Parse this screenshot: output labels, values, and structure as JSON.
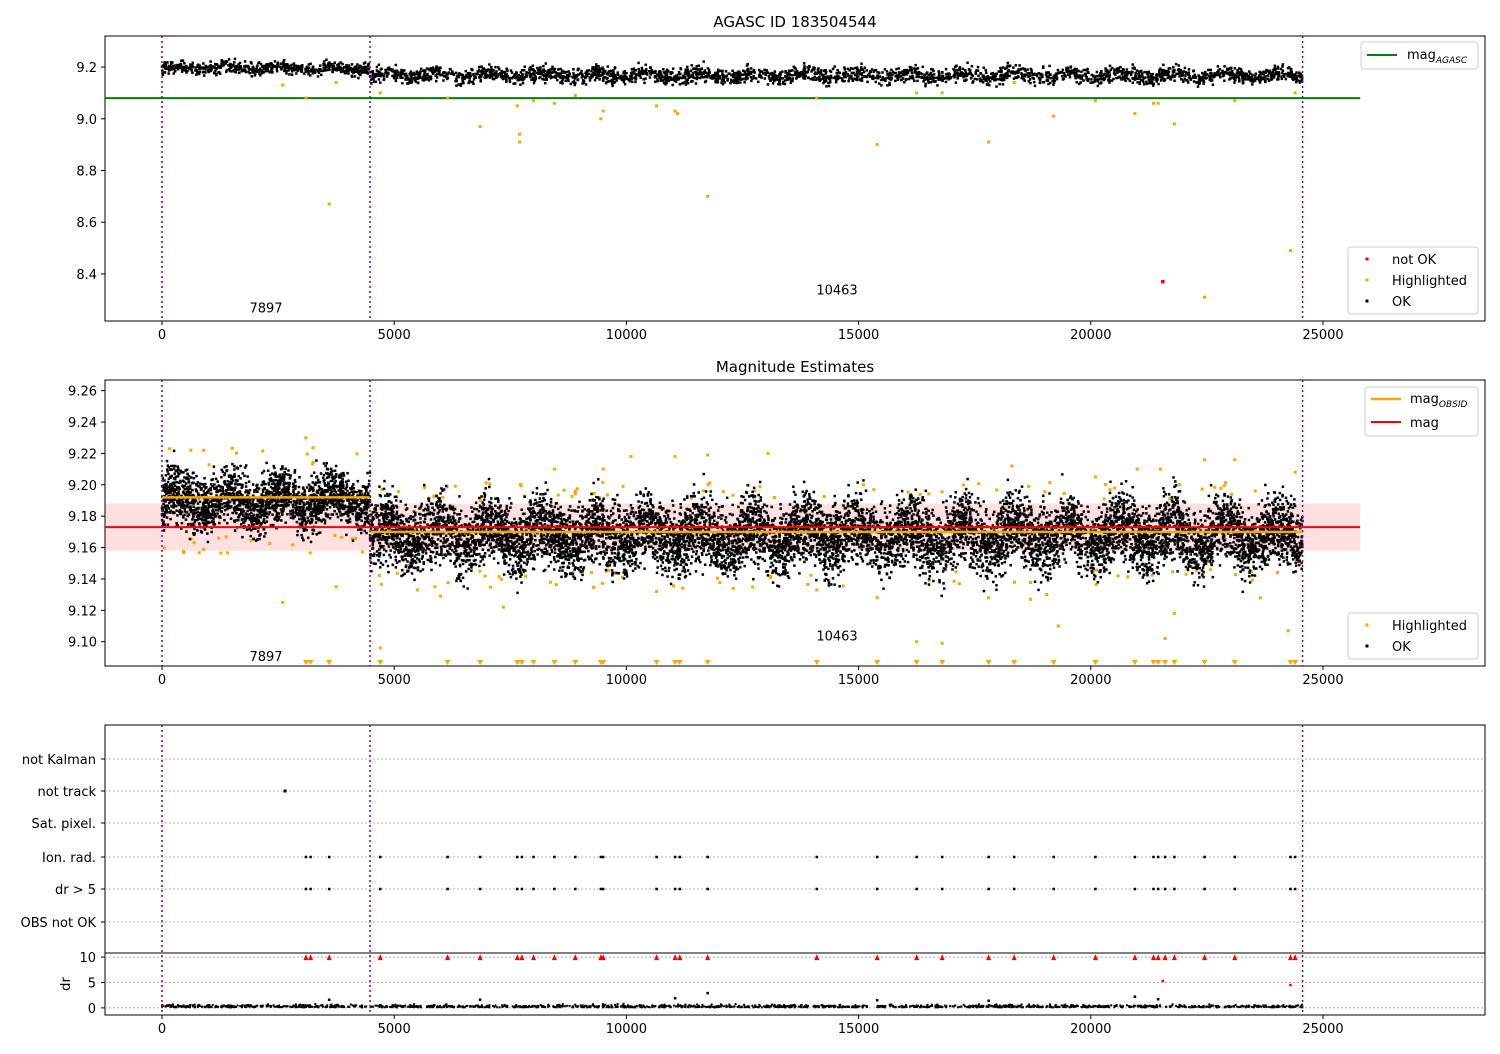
{
  "chart_data": [
    {
      "type": "scatter",
      "title": "AGASC ID 183504544",
      "xlabel": "",
      "ylabel": "",
      "xlim": [
        -1227,
        28488
      ],
      "ylim": [
        8.218,
        9.32
      ],
      "xticks": [
        0,
        5000,
        10000,
        15000,
        20000,
        25000
      ],
      "yticks": [
        8.4,
        8.6,
        8.8,
        9.0,
        9.2
      ],
      "ytick_labels": [
        "8.4",
        "8.6",
        "8.8",
        "9.0",
        "9.2"
      ],
      "obsid_boundaries": [
        0,
        4480,
        24560
      ],
      "obsid_labels": [
        {
          "text": "7897",
          "x": 2240,
          "y": 8.27
        },
        {
          "text": "10463",
          "x": 14535,
          "y": 8.34
        }
      ],
      "ok_segments": [
        {
          "start": 0,
          "end": 4480,
          "mean": 9.195,
          "spread": 0.012
        },
        {
          "start": 4480,
          "end": 24560,
          "mean": 9.168,
          "spread": 0.015
        }
      ],
      "mag_agasc": {
        "value": 9.08,
        "x_range": [
          -1227,
          25800
        ]
      },
      "highlighted": [
        [
          2600,
          9.13
        ],
        [
          3100,
          9.08
        ],
        [
          3600,
          8.67
        ],
        [
          3750,
          9.14
        ],
        [
          4700,
          9.1
        ],
        [
          6150,
          9.08
        ],
        [
          6850,
          8.97
        ],
        [
          7650,
          9.05
        ],
        [
          7700,
          8.94
        ],
        [
          7700,
          8.91
        ],
        [
          8000,
          9.07
        ],
        [
          8450,
          9.06
        ],
        [
          8900,
          9.09
        ],
        [
          9450,
          9.0
        ],
        [
          9500,
          9.03
        ],
        [
          10650,
          9.05
        ],
        [
          11050,
          9.03
        ],
        [
          11100,
          9.02
        ],
        [
          11750,
          8.7
        ],
        [
          14100,
          9.08
        ],
        [
          15400,
          8.9
        ],
        [
          16250,
          9.1
        ],
        [
          16800,
          9.1
        ],
        [
          17800,
          8.91
        ],
        [
          18350,
          9.14
        ],
        [
          19200,
          9.01
        ],
        [
          20100,
          9.07
        ],
        [
          20950,
          9.02
        ],
        [
          21350,
          9.06
        ],
        [
          21450,
          9.06
        ],
        [
          21800,
          8.98
        ],
        [
          22450,
          8.31
        ],
        [
          23100,
          9.07
        ],
        [
          24300,
          8.49
        ],
        [
          24400,
          9.1
        ]
      ],
      "not_ok": [
        [
          21550,
          8.37
        ]
      ],
      "legend": [
        {
          "label": "mag",
          "sub": "AGASC",
          "color": "#008000",
          "kind": "line",
          "placement": "top-right"
        },
        {
          "label": "not OK",
          "color": "#ff0000",
          "kind": "marker",
          "placement": "bottom-right"
        },
        {
          "label": "Highlighted",
          "color": "#ffa500",
          "kind": "marker",
          "placement": "bottom-right"
        },
        {
          "label": "OK",
          "color": "#000000",
          "kind": "marker",
          "placement": "bottom-right"
        }
      ]
    },
    {
      "type": "scatter",
      "title": "Magnitude Estimates",
      "xlim": [
        -1227,
        28488
      ],
      "ylim": [
        9.0845,
        9.2668
      ],
      "xticks": [
        0,
        5000,
        10000,
        15000,
        20000,
        25000
      ],
      "yticks": [
        9.1,
        9.12,
        9.14,
        9.16,
        9.18,
        9.2,
        9.22,
        9.24,
        9.26
      ],
      "ytick_labels": [
        "9.10",
        "9.12",
        "9.14",
        "9.16",
        "9.18",
        "9.20",
        "9.22",
        "9.24",
        "9.26"
      ],
      "obsid_boundaries": [
        0,
        4480,
        24560
      ],
      "obsid_labels": [
        {
          "text": "7897",
          "x": 2240,
          "y": 9.091
        },
        {
          "text": "10463",
          "x": 14535,
          "y": 9.104
        }
      ],
      "ok_segments": [
        {
          "start": 0,
          "end": 4480,
          "mean": 9.19,
          "spread": 0.009
        },
        {
          "start": 4480,
          "end": 24560,
          "mean": 9.168,
          "spread": 0.011
        }
      ],
      "mag_obsid": [
        {
          "value": 9.192,
          "x_range": [
            0,
            4480
          ]
        },
        {
          "value": 9.17,
          "x_range": [
            4480,
            24560
          ]
        }
      ],
      "mag": {
        "value": 9.173,
        "band": [
          9.158,
          9.188
        ],
        "x_range": [
          -1227,
          25800
        ]
      },
      "highlighted": [
        [
          2600,
          9.125
        ],
        [
          3100,
          9.23
        ],
        [
          3750,
          9.135
        ],
        [
          4700,
          9.096
        ],
        [
          5500,
          9.133
        ],
        [
          6000,
          9.129
        ],
        [
          6850,
          9.19
        ],
        [
          7350,
          9.122
        ],
        [
          8450,
          9.21
        ],
        [
          9500,
          9.21
        ],
        [
          10100,
          9.218
        ],
        [
          10650,
          9.132
        ],
        [
          11050,
          9.218
        ],
        [
          11750,
          9.219
        ],
        [
          12300,
          9.134
        ],
        [
          13050,
          9.22
        ],
        [
          14100,
          9.133
        ],
        [
          15400,
          9.128
        ],
        [
          16250,
          9.1
        ],
        [
          16800,
          9.099
        ],
        [
          17800,
          9.128
        ],
        [
          18300,
          9.212
        ],
        [
          18700,
          9.127
        ],
        [
          19050,
          9.13
        ],
        [
          19300,
          9.11
        ],
        [
          20100,
          9.205
        ],
        [
          21000,
          9.21
        ],
        [
          21500,
          9.21
        ],
        [
          21600,
          9.102
        ],
        [
          21800,
          9.118
        ],
        [
          22450,
          9.216
        ],
        [
          23100,
          9.216
        ],
        [
          23650,
          9.128
        ],
        [
          24250,
          9.107
        ],
        [
          24400,
          9.208
        ]
      ],
      "below_range_times": [
        3100,
        3200,
        3600,
        4700,
        6150,
        6850,
        7650,
        7750,
        8000,
        8450,
        8900,
        9450,
        9500,
        10650,
        11050,
        11150,
        11750,
        14100,
        15400,
        16250,
        16800,
        17800,
        18350,
        19200,
        20100,
        20950,
        21350,
        21450,
        21600,
        21800,
        22450,
        23100,
        24300,
        24400
      ],
      "legend": [
        {
          "label": "mag",
          "sub": "OBSID",
          "color": "#ffa500",
          "kind": "line",
          "placement": "top-right"
        },
        {
          "label": "mag",
          "sub": "",
          "color": "#ff0000",
          "kind": "line",
          "placement": "top-right"
        },
        {
          "label": "Highlighted",
          "color": "#ffa500",
          "kind": "marker",
          "placement": "bottom-right"
        },
        {
          "label": "OK",
          "color": "#000000",
          "kind": "marker",
          "placement": "bottom-right"
        }
      ]
    },
    {
      "type": "scatter",
      "title": "",
      "xlim": [
        -1227,
        28488
      ],
      "xticks": [
        0,
        5000,
        10000,
        15000,
        20000,
        25000
      ],
      "categories": [
        "not Kalman",
        "not track",
        "Sat. pixel.",
        "Ion. rad.",
        "dr > 5",
        "OBS not OK"
      ],
      "flag_points": {
        "not track": [
          2650
        ],
        "Ion. rad.": "flagged_times",
        "dr > 5": "flagged_times"
      },
      "flagged_times": [
        3100,
        3200,
        3600,
        4700,
        6150,
        6850,
        7650,
        7750,
        8000,
        8450,
        8900,
        9450,
        9500,
        10650,
        11050,
        11150,
        11750,
        14100,
        15400,
        16250,
        16800,
        17800,
        18350,
        19200,
        20100,
        20950,
        21350,
        21450,
        21600,
        21800,
        22450,
        23100,
        24300,
        24400
      ],
      "dr": {
        "ylabel": "dr",
        "yticks": [
          0,
          5,
          10
        ],
        "ytick_labels": [
          "0",
          "5",
          "10"
        ],
        "ylim": [
          -1.4,
          10.8
        ],
        "clip_value": 10,
        "typical": 0.3,
        "outliers": [
          [
            3600,
            1.6
          ],
          [
            6850,
            1.6
          ],
          [
            11050,
            1.9
          ],
          [
            11750,
            2.9
          ],
          [
            15400,
            1.5
          ],
          [
            17800,
            1.4
          ],
          [
            20950,
            2.2
          ],
          [
            21450,
            1.7
          ],
          [
            21550,
            5.3
          ],
          [
            24300,
            4.5
          ]
        ]
      },
      "obsid_boundaries": [
        0,
        4480,
        24560
      ]
    }
  ]
}
